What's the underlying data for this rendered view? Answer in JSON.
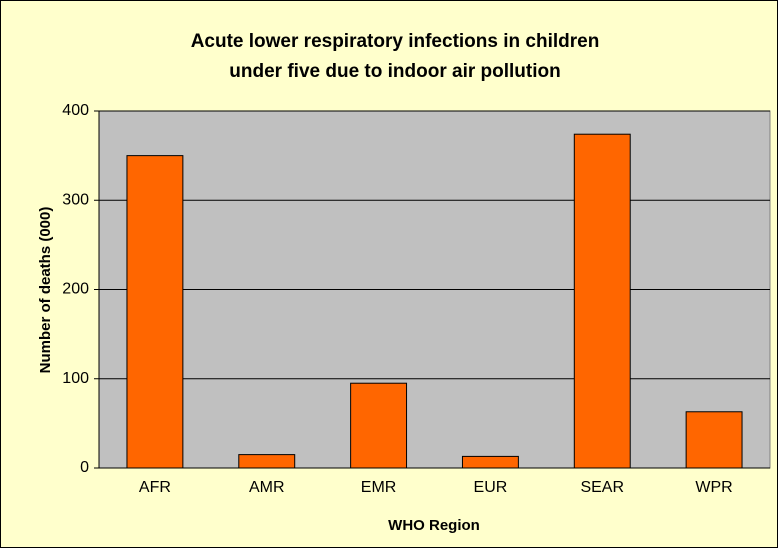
{
  "chart_data": {
    "type": "bar",
    "title": [
      "Acute lower respiratory infections in children",
      "under five due to indoor air pollution"
    ],
    "x_label": "WHO Region",
    "y_label": "Number of deaths (000)",
    "categories": [
      "AFR",
      "AMR",
      "EMR",
      "EUR",
      "SEAR",
      "WPR"
    ],
    "values": [
      350,
      15,
      95,
      13,
      374,
      63
    ],
    "color": "#ff6600",
    "plot_background": "#c0c0c0",
    "background": "#ffffcc",
    "ylim": [
      0,
      400
    ],
    "yticks": [
      0,
      100,
      200,
      300,
      400
    ],
    "grid": true
  }
}
